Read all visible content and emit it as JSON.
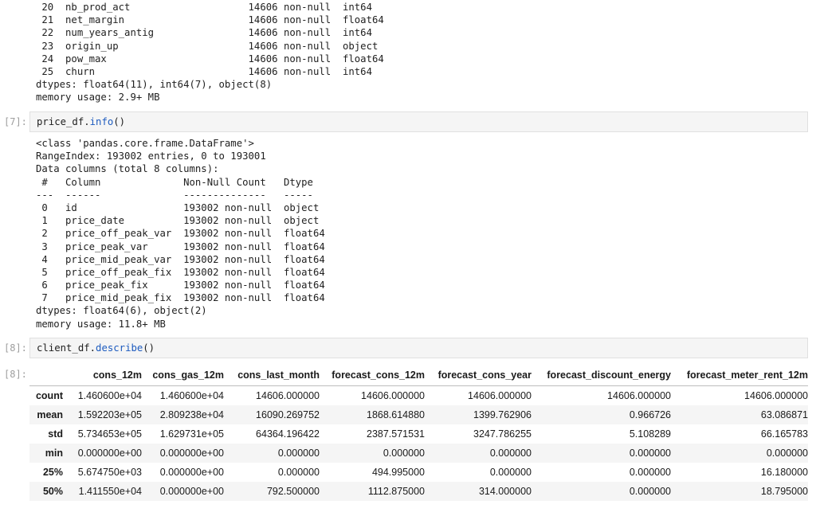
{
  "cells": [
    {
      "output_lines": [
        " 20  nb_prod_act                    14606 non-null  int64",
        " 21  net_margin                     14606 non-null  float64",
        " 22  num_years_antig                14606 non-null  int64",
        " 23  origin_up                      14606 non-null  object",
        " 24  pow_max                        14606 non-null  float64",
        " 25  churn                          14606 non-null  int64",
        "dtypes: float64(11), int64(7), object(8)",
        "memory usage: 2.9+ MB"
      ]
    },
    {
      "prompt": "[7]:",
      "code_obj": "price_df.",
      "code_fn": "info",
      "code_rest": "()",
      "output_lines": [
        "<class 'pandas.core.frame.DataFrame'>",
        "RangeIndex: 193002 entries, 0 to 193001",
        "Data columns (total 8 columns):",
        " #   Column              Non-Null Count   Dtype",
        "---  ------              --------------   -----",
        " 0   id                  193002 non-null  object",
        " 1   price_date          193002 non-null  object",
        " 2   price_off_peak_var  193002 non-null  float64",
        " 3   price_peak_var      193002 non-null  float64",
        " 4   price_mid_peak_var  193002 non-null  float64",
        " 5   price_off_peak_fix  193002 non-null  float64",
        " 6   price_peak_fix      193002 non-null  float64",
        " 7   price_mid_peak_fix  193002 non-null  float64",
        "dtypes: float64(6), object(2)",
        "memory usage: 11.8+ MB"
      ]
    },
    {
      "prompt": "[8]:",
      "out_prompt": "[8]:",
      "code_obj": "client_df.",
      "code_fn": "describe",
      "code_rest": "()",
      "table": {
        "columns": [
          "",
          "cons_12m",
          "cons_gas_12m",
          "cons_last_month",
          "forecast_cons_12m",
          "forecast_cons_year",
          "forecast_discount_energy",
          "forecast_meter_rent_12m"
        ],
        "rows": [
          [
            "count",
            "1.460600e+04",
            "1.460600e+04",
            "14606.000000",
            "14606.000000",
            "14606.000000",
            "14606.000000",
            "14606.000000"
          ],
          [
            "mean",
            "1.592203e+05",
            "2.809238e+04",
            "16090.269752",
            "1868.614880",
            "1399.762906",
            "0.966726",
            "63.086871"
          ],
          [
            "std",
            "5.734653e+05",
            "1.629731e+05",
            "64364.196422",
            "2387.571531",
            "3247.786255",
            "5.108289",
            "66.165783"
          ],
          [
            "min",
            "0.000000e+00",
            "0.000000e+00",
            "0.000000",
            "0.000000",
            "0.000000",
            "0.000000",
            "0.000000"
          ],
          [
            "25%",
            "5.674750e+03",
            "0.000000e+00",
            "0.000000",
            "494.995000",
            "0.000000",
            "0.000000",
            "16.180000"
          ],
          [
            "50%",
            "1.411550e+04",
            "0.000000e+00",
            "792.500000",
            "1112.875000",
            "314.000000",
            "0.000000",
            "18.795000"
          ]
        ]
      }
    }
  ],
  "colors": {
    "method": "#1d5bbf",
    "prompt": "#9e9e9e",
    "cell_bg": "#f5f5f5"
  }
}
